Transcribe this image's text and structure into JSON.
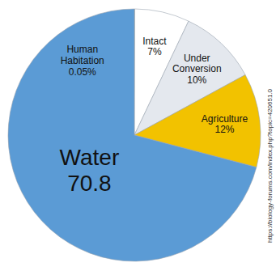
{
  "chart_data": {
    "type": "pie",
    "categories": [
      "Human Habitation",
      "Intact",
      "Under Conversion",
      "Agriculture",
      "Water"
    ],
    "values": [
      0.05,
      7,
      10,
      12,
      70.8
    ],
    "value_labels": [
      "0.05%",
      "7%",
      "10%",
      "12%",
      "70.8"
    ],
    "colors": [
      "#f2c200",
      "#ffffff",
      "#e4e8ee",
      "#f2c200",
      "#5b9bd5"
    ],
    "data_labels": true,
    "annotations": [
      "https://biology-forums.com/index.php?topic=420651.0"
    ]
  }
}
